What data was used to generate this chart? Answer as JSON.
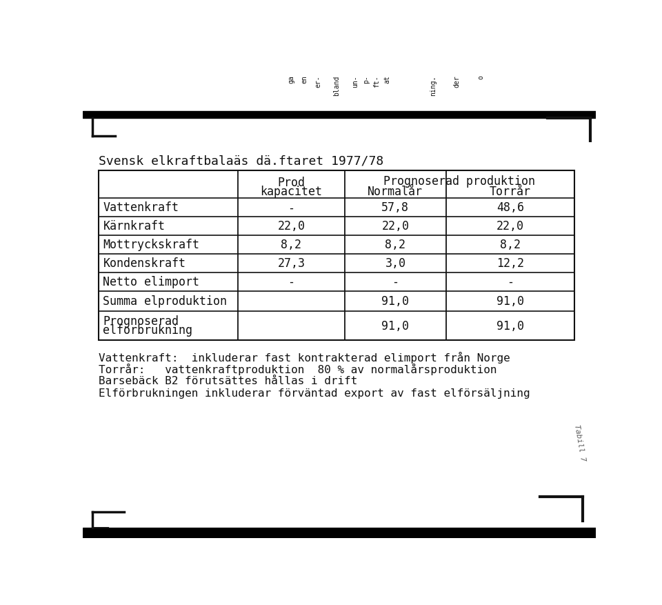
{
  "title": "Svensk elkraftbalaäs däftaret 1977/78",
  "rows": [
    [
      "Vattenkraft",
      "-",
      "57,8",
      "48,6"
    ],
    [
      "Kärnkraft",
      "22,0",
      "22,0",
      "22,0"
    ],
    [
      "Mottryckskraft",
      "8,2",
      "8,2",
      "8,2"
    ],
    [
      "Kondenskraft",
      "27,3",
      "3,0",
      "12,2"
    ],
    [
      "Netto elimport",
      "-",
      "-",
      "-"
    ],
    [
      "Summa elproduktion",
      "",
      "91,0",
      "91,0"
    ],
    [
      "Prognoserad\nelforbrukning",
      "",
      "91,0",
      "91,0"
    ]
  ],
  "footnotes": [
    "Vattenkraft:  inkluderar fast kontrakterad elimport från Norge",
    "Torrår:   vattenkraftproduktion  80 % av normalårsproduktion",
    "Barsebäck B2 förutsättes hållas i drift",
    "Elförbrukningen inkluderar förväntad export av fast elförsäljning"
  ],
  "top_labels": [
    "ga",
    "en",
    "er-",
    "bland",
    "un-",
    "p-",
    "ft-",
    "at",
    "ning.",
    "der",
    "o"
  ],
  "top_x": [
    390,
    415,
    440,
    475,
    510,
    530,
    550,
    570,
    655,
    700,
    745
  ],
  "bg_color": "#ffffff",
  "table_bg": "#ffffff",
  "border_color": "#111111",
  "text_color": "#111111",
  "font_size": 12,
  "title_font_size": 13
}
